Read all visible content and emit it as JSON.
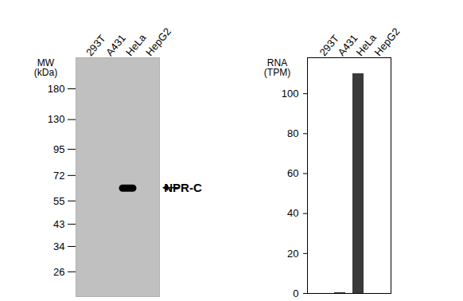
{
  "chart_data": [
    {
      "type": "blot",
      "categories": [
        "293T",
        "A431",
        "HeLa",
        "HepG2"
      ],
      "y_label": "MW\n(kDa)",
      "ylim": [
        20,
        250
      ],
      "yticks": [
        180,
        130,
        95,
        72,
        55,
        43,
        34,
        26
      ],
      "log": "y",
      "bands": [
        {
          "lane": "HeLa",
          "mw": 63,
          "label": "NPR-C"
        }
      ],
      "color": "#000000"
    },
    {
      "type": "bar",
      "categories": [
        "293T",
        "A431",
        "HeLa",
        "HepG2"
      ],
      "values": [
        0,
        0.4,
        110,
        0
      ],
      "y_label": "RNA\n(TPM)",
      "ylim": [
        0,
        118
      ],
      "yticks": [
        0,
        20,
        40,
        60,
        80,
        100
      ],
      "color": "#3a3a3a"
    }
  ]
}
